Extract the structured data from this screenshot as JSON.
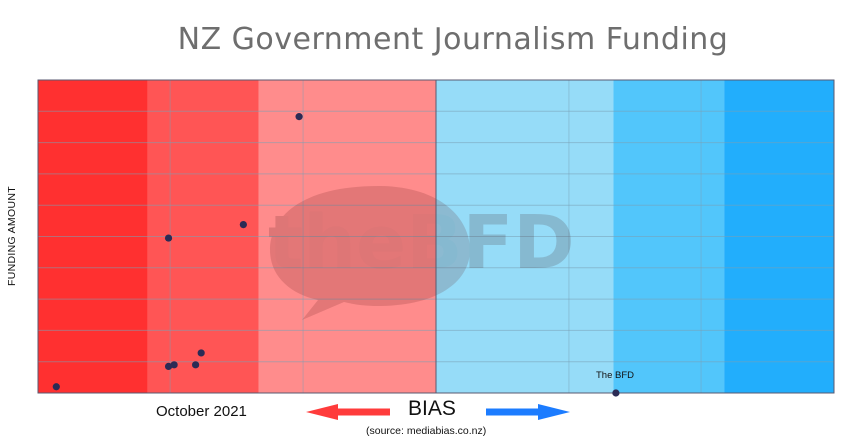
{
  "chart_data": {
    "type": "scatter",
    "title": "NZ Government Journalism Funding",
    "ylabel": "FUNDING AMOUNT",
    "xlabel": "BIAS",
    "date": "October 2021",
    "source": "(source: mediabias.co.nz)",
    "watermark": "theBFD",
    "xlim": [
      0,
      100
    ],
    "ylim": [
      0,
      100
    ],
    "grid": true,
    "bands": [
      {
        "from": 0,
        "to": 13.8,
        "color": "#ff3030"
      },
      {
        "from": 13.8,
        "to": 27.7,
        "color": "#ff5555"
      },
      {
        "from": 27.7,
        "to": 50,
        "color": "#ff8c8c"
      },
      {
        "from": 50,
        "to": 72.3,
        "color": "#96dcf8"
      },
      {
        "from": 72.3,
        "to": 86.2,
        "color": "#52c6fb"
      },
      {
        "from": 86.2,
        "to": 100,
        "color": "#22aefc"
      }
    ],
    "points": [
      {
        "x": 2.3,
        "y": 2
      },
      {
        "x": 16.4,
        "y": 49.5
      },
      {
        "x": 16.4,
        "y": 8.5
      },
      {
        "x": 17.1,
        "y": 9
      },
      {
        "x": 19.8,
        "y": 9
      },
      {
        "x": 20.5,
        "y": 12.8
      },
      {
        "x": 25.8,
        "y": 53.8
      },
      {
        "x": 32.8,
        "y": 88.3
      },
      {
        "x": 72.6,
        "y": 0,
        "label": "The BFD"
      }
    ],
    "colors": {
      "point": "#2b2b55",
      "grid": "#7aa0b5",
      "arrow_left": "#ff3b3b",
      "arrow_right": "#1c7cff",
      "divider": "#5a5a70"
    }
  }
}
